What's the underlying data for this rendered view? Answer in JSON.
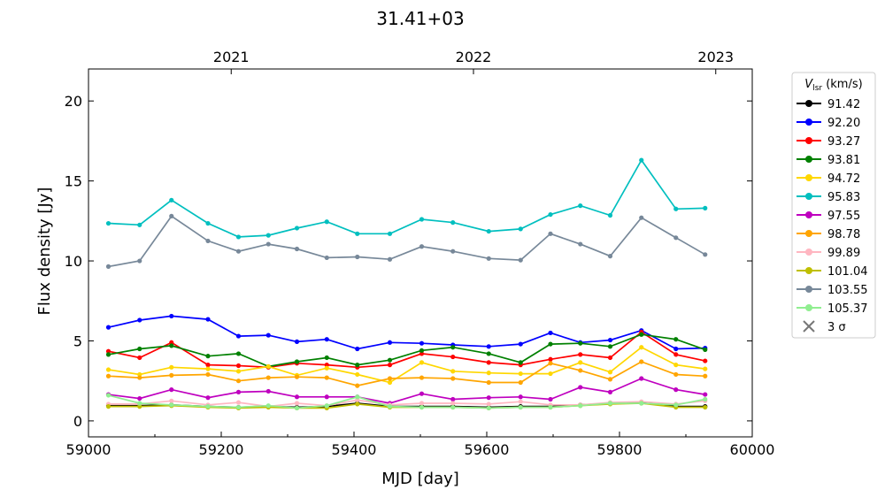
{
  "chart_data": {
    "type": "line",
    "title": "31.41+03",
    "xlabel": "MJD [day]",
    "ylabel": "Flux density [Jy]",
    "xlim": [
      59000,
      60000
    ],
    "ylim": [
      -1,
      22
    ],
    "xticks": [
      59000,
      59200,
      59400,
      59600,
      59800,
      60000
    ],
    "yticks": [
      0,
      5,
      10,
      15,
      20
    ],
    "top_axis_ticks": [
      {
        "label": "2021",
        "mjd": 59215
      },
      {
        "label": "2022",
        "mjd": 59580
      },
      {
        "label": "2023",
        "mjd": 59945
      }
    ],
    "legend": {
      "title": "V_lsr (km/s)",
      "title_main": "V",
      "title_sub": "lsr",
      "title_unit": " (km/s)",
      "position": "outside-right",
      "sigma_label": "3 σ"
    },
    "grid": false,
    "x": [
      59030,
      59077,
      59125,
      59180,
      59226,
      59271,
      59314,
      59359,
      59405,
      59454,
      59502,
      59549,
      59603,
      59651,
      59696,
      59741,
      59786,
      59833,
      59885,
      59929
    ],
    "series": [
      {
        "name": "91.42",
        "color": "#000000",
        "values": [
          0.95,
          0.95,
          1.0,
          0.9,
          0.85,
          0.9,
          0.85,
          0.9,
          1.1,
          0.9,
          0.9,
          0.9,
          0.85,
          0.9,
          0.9,
          1.0,
          1.1,
          1.15,
          0.9,
          0.9
        ]
      },
      {
        "name": "92.20",
        "color": "#0000ff",
        "values": [
          5.85,
          6.3,
          6.55,
          6.35,
          5.3,
          5.35,
          4.95,
          5.1,
          4.5,
          4.9,
          4.85,
          4.75,
          4.65,
          4.8,
          5.5,
          4.9,
          5.05,
          5.65,
          4.5,
          4.55
        ]
      },
      {
        "name": "93.27",
        "color": "#ff0000",
        "values": [
          4.35,
          3.95,
          4.9,
          3.5,
          3.45,
          3.35,
          3.6,
          3.5,
          3.35,
          3.5,
          4.2,
          4.0,
          3.65,
          3.5,
          3.85,
          4.15,
          3.95,
          5.55,
          4.15,
          3.75
        ]
      },
      {
        "name": "93.81",
        "color": "#008000",
        "values": [
          4.15,
          4.5,
          4.7,
          4.05,
          4.2,
          3.4,
          3.7,
          3.95,
          3.5,
          3.8,
          4.4,
          4.6,
          4.2,
          3.65,
          4.8,
          4.85,
          4.65,
          5.4,
          5.1,
          4.45
        ]
      },
      {
        "name": "94.72",
        "color": "#ffd700",
        "values": [
          3.2,
          2.9,
          3.35,
          3.25,
          3.1,
          3.4,
          2.85,
          3.3,
          2.9,
          2.4,
          3.65,
          3.1,
          3.0,
          2.95,
          2.95,
          3.65,
          3.05,
          4.6,
          3.5,
          3.25
        ]
      },
      {
        "name": "95.83",
        "color": "#00bfbf",
        "values": [
          12.35,
          12.25,
          13.8,
          12.35,
          11.5,
          11.6,
          12.05,
          12.45,
          11.7,
          11.7,
          12.6,
          12.4,
          11.85,
          12.0,
          12.9,
          13.45,
          12.85,
          16.3,
          13.25,
          13.3
        ]
      },
      {
        "name": "97.55",
        "color": "#bf00bf",
        "values": [
          1.65,
          1.4,
          1.95,
          1.45,
          1.8,
          1.85,
          1.5,
          1.5,
          1.5,
          1.1,
          1.7,
          1.35,
          1.45,
          1.5,
          1.35,
          2.1,
          1.8,
          2.65,
          1.95,
          1.65
        ]
      },
      {
        "name": "98.78",
        "color": "#ffa500",
        "values": [
          2.8,
          2.7,
          2.85,
          2.9,
          2.5,
          2.7,
          2.75,
          2.7,
          2.2,
          2.65,
          2.7,
          2.65,
          2.4,
          2.4,
          3.6,
          3.15,
          2.6,
          3.7,
          2.9,
          2.8
        ]
      },
      {
        "name": "99.89",
        "color": "#ffb6c1",
        "values": [
          1.05,
          1.05,
          1.25,
          1.0,
          1.15,
          0.9,
          1.1,
          0.95,
          1.3,
          1.0,
          1.1,
          1.1,
          1.05,
          1.2,
          1.0,
          1.0,
          1.15,
          1.2,
          1.05,
          1.25
        ]
      },
      {
        "name": "101.04",
        "color": "#bfbf00",
        "values": [
          0.9,
          0.9,
          0.95,
          0.85,
          0.8,
          0.85,
          0.8,
          0.8,
          1.05,
          0.85,
          0.85,
          0.85,
          0.8,
          0.85,
          0.85,
          0.95,
          1.05,
          1.1,
          0.85,
          0.85
        ]
      },
      {
        "name": "103.55",
        "color": "#778899",
        "values": [
          9.65,
          10.0,
          12.8,
          11.25,
          10.6,
          11.05,
          10.75,
          10.2,
          10.25,
          10.1,
          10.9,
          10.6,
          10.15,
          10.05,
          11.7,
          11.05,
          10.3,
          12.7,
          11.45,
          10.4
        ]
      },
      {
        "name": "105.37",
        "color": "#90ee90",
        "values": [
          1.6,
          1.1,
          1.0,
          0.9,
          0.85,
          0.95,
          0.8,
          0.95,
          1.5,
          0.9,
          0.85,
          0.85,
          0.8,
          0.85,
          0.85,
          0.95,
          1.1,
          1.1,
          1.0,
          1.35
        ]
      }
    ]
  }
}
